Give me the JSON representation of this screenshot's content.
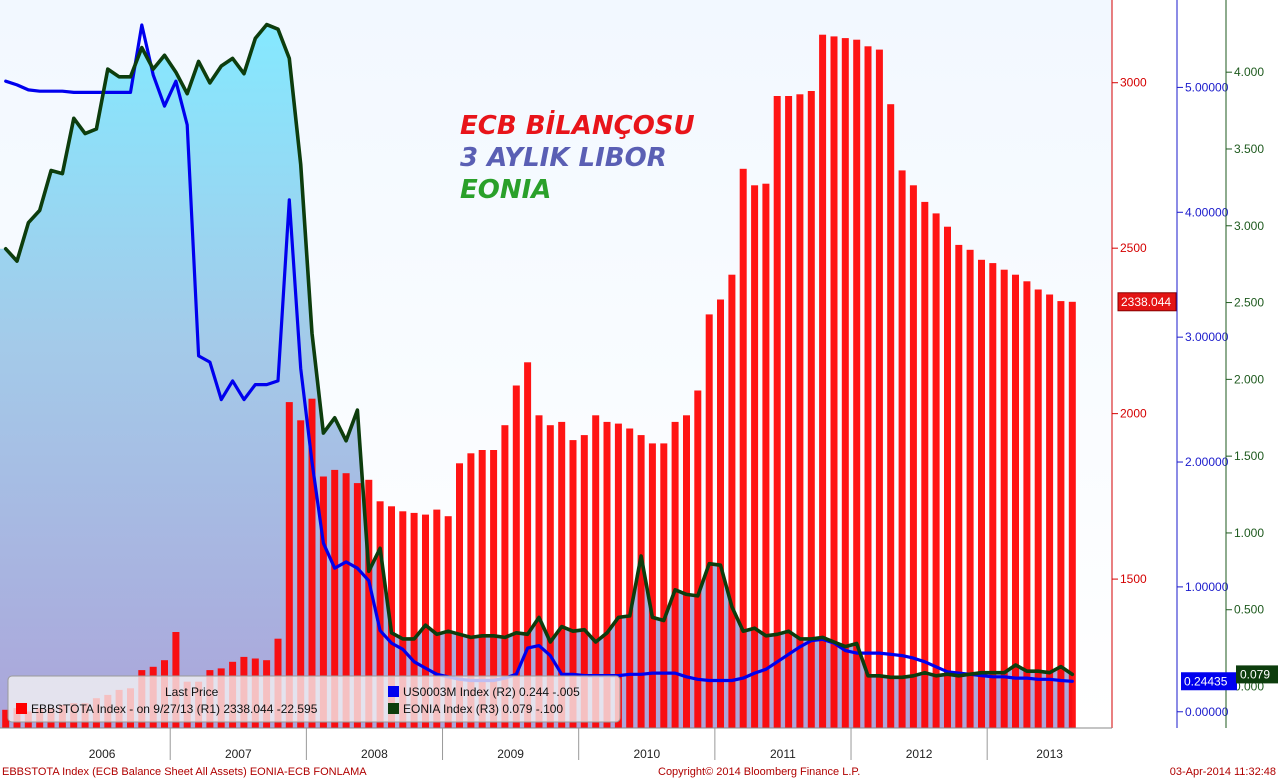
{
  "chart_data": {
    "type": "bar",
    "title_lines": [
      {
        "text": "ECB BİLANÇOSU",
        "color": "#e8141a"
      },
      {
        "text": "3 AYLIK LIBOR",
        "color": "#5a5fb4"
      },
      {
        "text": "EONIA",
        "color": "#2aa02a"
      }
    ],
    "years": [
      "2006",
      "2007",
      "2008",
      "2009",
      "2010",
      "2011",
      "2012",
      "2013"
    ],
    "x_range": [
      "2005-10",
      "2013-11"
    ],
    "axes": {
      "r1": {
        "min": 1050,
        "max": 3250,
        "ticks": [
          1500,
          2000,
          2500,
          3000
        ],
        "color": "#d40000"
      },
      "r2": {
        "min": -0.13,
        "max": 5.7,
        "ticks": [
          "0.00000",
          "1.00000",
          "2.00000",
          "3.00000",
          "4.00000",
          "5.00000"
        ],
        "color": "#1a1acc"
      },
      "r3": {
        "min": -0.27,
        "max": 4.47,
        "ticks": [
          "0.000",
          "0.500",
          "1.000",
          "1.500",
          "2.000",
          "2.500",
          "3.000",
          "3.500",
          "4.000"
        ],
        "color": "#1e5a1e"
      }
    },
    "series": [
      {
        "name": "EBBSTOTA Index",
        "axis": "r1",
        "kind": "bar",
        "color": "#ff0000",
        "start": "2005-10",
        "values": [
          1105,
          1110,
          1100,
          1110,
          1110,
          1120,
          1125,
          1125,
          1140,
          1150,
          1165,
          1170,
          1225,
          1235,
          1255,
          1340,
          1190,
          1190,
          1225,
          1230,
          1250,
          1265,
          1260,
          1255,
          1320,
          2035,
          1980,
          2045,
          1810,
          1830,
          1820,
          1790,
          1800,
          1735,
          1720,
          1705,
          1700,
          1695,
          1710,
          1690,
          1850,
          1880,
          1890,
          1890,
          1965,
          2085,
          2155,
          1995,
          1965,
          1975,
          1920,
          1935,
          1995,
          1975,
          1970,
          1955,
          1935,
          1910,
          1910,
          1975,
          1995,
          2070,
          2300,
          2345,
          2420,
          2740,
          2690,
          2695,
          2960,
          2960,
          2965,
          2975,
          3145,
          3140,
          3135,
          3130,
          3110,
          3100,
          2935,
          2735,
          2690,
          2640,
          2605,
          2565,
          2510,
          2495,
          2465,
          2455,
          2435,
          2420,
          2400,
          2375,
          2360,
          2340,
          2338
        ]
      },
      {
        "name": "US0003M Index",
        "axis": "r2",
        "kind": "line",
        "color": "#0000ee",
        "start": "2005-10",
        "values": [
          5.05,
          5.02,
          4.98,
          4.97,
          4.97,
          4.97,
          4.96,
          4.96,
          4.96,
          4.96,
          4.96,
          4.96,
          5.5,
          5.1,
          4.85,
          5.05,
          4.7,
          2.85,
          2.8,
          2.5,
          2.65,
          2.5,
          2.62,
          2.62,
          2.65,
          4.1,
          2.75,
          2.0,
          1.35,
          1.15,
          1.2,
          1.15,
          1.05,
          0.65,
          0.55,
          0.5,
          0.4,
          0.35,
          0.3,
          0.28,
          0.26,
          0.25,
          0.25,
          0.25,
          0.27,
          0.3,
          0.51,
          0.53,
          0.45,
          0.3,
          0.3,
          0.29,
          0.29,
          0.29,
          0.29,
          0.3,
          0.3,
          0.31,
          0.31,
          0.31,
          0.28,
          0.26,
          0.25,
          0.25,
          0.25,
          0.27,
          0.31,
          0.34,
          0.4,
          0.46,
          0.52,
          0.57,
          0.58,
          0.55,
          0.49,
          0.47,
          0.47,
          0.47,
          0.46,
          0.45,
          0.43,
          0.4,
          0.36,
          0.32,
          0.31,
          0.3,
          0.29,
          0.28,
          0.28,
          0.27,
          0.27,
          0.26,
          0.26,
          0.25,
          0.244
        ]
      },
      {
        "name": "EONIA Index",
        "axis": "r3",
        "kind": "line",
        "color": "#0d3d0d",
        "start": "2005-10",
        "values": [
          2.85,
          2.77,
          3.02,
          3.1,
          3.36,
          3.34,
          3.7,
          3.6,
          3.63,
          4.02,
          3.97,
          3.97,
          4.16,
          4.02,
          4.11,
          4.0,
          3.86,
          4.07,
          3.93,
          4.04,
          4.09,
          3.99,
          4.22,
          4.31,
          4.28,
          4.09,
          3.4,
          2.3,
          1.65,
          1.75,
          1.6,
          1.8,
          0.75,
          0.9,
          0.35,
          0.31,
          0.31,
          0.4,
          0.34,
          0.36,
          0.34,
          0.32,
          0.33,
          0.33,
          0.32,
          0.35,
          0.34,
          0.45,
          0.29,
          0.39,
          0.36,
          0.37,
          0.29,
          0.35,
          0.45,
          0.46,
          0.85,
          0.45,
          0.43,
          0.63,
          0.6,
          0.59,
          0.8,
          0.79,
          0.52,
          0.36,
          0.38,
          0.33,
          0.34,
          0.36,
          0.31,
          0.31,
          0.32,
          0.29,
          0.26,
          0.28,
          0.07,
          0.07,
          0.06,
          0.06,
          0.07,
          0.09,
          0.07,
          0.08,
          0.07,
          0.08,
          0.09,
          0.09,
          0.09,
          0.14,
          0.1,
          0.1,
          0.09,
          0.13,
          0.079
        ]
      }
    ],
    "price_tags": {
      "r1": {
        "value": 2338.044,
        "label": "2338.044",
        "bg": "#e31414",
        "fg": "#ffffff"
      },
      "r2": {
        "value": 0.24435,
        "label": "0.24435",
        "bg": "#0000ee",
        "fg": "#ffffff"
      },
      "r3": {
        "value": 0.079,
        "label": "0.079",
        "bg": "#0d3d0d",
        "fg": "#ffffff"
      }
    },
    "legend": {
      "placement": "bottom-left",
      "header": "Last Price",
      "entries": [
        {
          "color": "#ff0000",
          "label": "EBBSTOTA Index -   on 9/27/13  (R1) 2338.044   -22.595"
        },
        {
          "color": "#0000ee",
          "label": "US0003M Index  (R2) 0.244   -.005"
        },
        {
          "color": "#0d3d0d",
          "label": "EONIA Index  (R3)    0.079   -.100"
        }
      ]
    },
    "grid": false
  },
  "footer": {
    "left": "EBBSTOTA Index (ECB Balance Sheet All Assets) EONIA-ECB FONLAMA",
    "center": "Copyright© 2014 Bloomberg Finance L.P.",
    "right": "03-Apr-2014 11:32:48"
  }
}
